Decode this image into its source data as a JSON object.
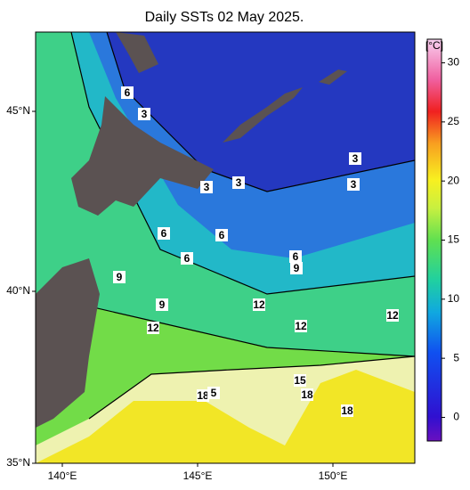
{
  "title": "Daily SSTs 02 May 2025.",
  "colorbar": {
    "unit": "[°C]",
    "range": [
      -2,
      32
    ],
    "ticks": [
      0,
      5,
      10,
      15,
      20,
      25,
      30
    ]
  },
  "lat_labels": [
    "35°N",
    "40°N",
    "45°N"
  ],
  "lon_labels": [
    "140°E",
    "145°E",
    "150°E"
  ],
  "contour_labels": [
    6,
    3,
    3,
    3,
    3,
    3,
    6,
    6,
    6,
    6,
    9,
    9,
    9,
    12,
    12,
    12,
    12,
    15,
    18,
    18,
    5,
    18
  ]
}
